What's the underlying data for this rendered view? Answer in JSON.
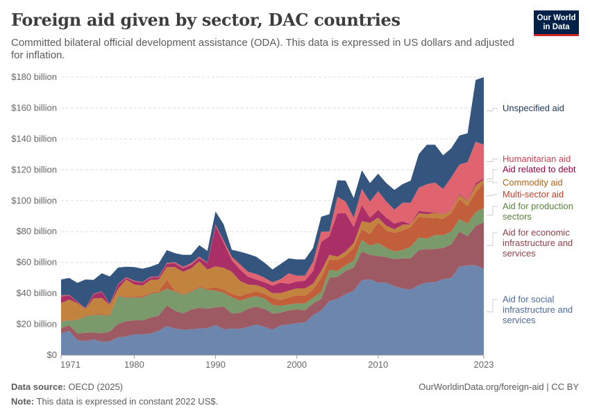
{
  "header": {
    "title": "Foreign aid given by sector, DAC countries",
    "subtitle": "Committed bilateral official development assistance (ODA). This data is expressed in US dollars and adjusted for inflation.",
    "logo": {
      "line1": "Our World",
      "line2": "in Data",
      "bg": "#002147",
      "accent": "#ce261e"
    }
  },
  "footer": {
    "source_label": "Data source:",
    "source": "OECD (2025)",
    "note_label": "Note:",
    "note": "This data is expressed in constant 2022 US$.",
    "url": "OurWorldinData.org/foreign-aid | CC BY"
  },
  "chart_data": {
    "type": "area",
    "stacked": true,
    "title": "Foreign aid given by sector, DAC countries",
    "ylim": [
      0,
      180
    ],
    "yticks": [
      {
        "v": 0,
        "label": "$0"
      },
      {
        "v": 20,
        "label": "$20 billion"
      },
      {
        "v": 40,
        "label": "$40 billion"
      },
      {
        "v": 60,
        "label": "$60 billion"
      },
      {
        "v": 80,
        "label": "$80 billion"
      },
      {
        "v": 100,
        "label": "$100 billion"
      },
      {
        "v": 120,
        "label": "$120 billion"
      },
      {
        "v": 140,
        "label": "$140 billion"
      },
      {
        "v": 160,
        "label": "$160 billion"
      },
      {
        "v": 180,
        "label": "$180 billion"
      }
    ],
    "xticks": [
      "1971",
      "1980",
      "1990",
      "2000",
      "2010",
      "2023"
    ],
    "xlim": [
      1971,
      2023
    ],
    "grid": "horizontal dashed",
    "legend": "right, inline labels",
    "units": "billion US$ (constant 2022)",
    "series": [
      {
        "name": "Aid for social infrastructure and services",
        "label_lines": [
          "Aid for social",
          "infrastructure and",
          "services"
        ],
        "color": "#6d86ae",
        "label_color": "#4c6a9c",
        "values": [
          14,
          15.7,
          9.7,
          9,
          10.2,
          8.7,
          9,
          11.5,
          12,
          13.5,
          13.5,
          14,
          15.7,
          18.7,
          17.2,
          16.5,
          16.8,
          17.2,
          17.5,
          19.5,
          16.8,
          17.2,
          17,
          18.3,
          19.8,
          18.3,
          16.5,
          19.2,
          20,
          20.7,
          21.2,
          26,
          29,
          35,
          36.5,
          39.5,
          41.7,
          48.5,
          49.2,
          47,
          47,
          44.7,
          43.2,
          42.4,
          45.4,
          47,
          47.2,
          49.2,
          50,
          57.4,
          58.2,
          58.2,
          56
        ]
      },
      {
        "name": "Aid for economic infrastructure and services",
        "label_lines": [
          "Aid for economic",
          "infrastructure and",
          "services"
        ],
        "color": "#9e5a62",
        "label_color": "#8f3e48",
        "values": [
          3.5,
          3.8,
          4.3,
          5.5,
          4.5,
          5.5,
          6.3,
          8.7,
          10,
          9,
          9,
          10.3,
          9.8,
          13.5,
          11.6,
          10.5,
          12.7,
          13.5,
          12.5,
          11.5,
          14.7,
          9.8,
          10.4,
          11.7,
          11.7,
          11.7,
          10.5,
          8.3,
          9,
          9,
          7.8,
          7.5,
          7.5,
          15,
          14.2,
          15,
          15,
          18.7,
          15.8,
          17.2,
          16.5,
          17.5,
          19.5,
          20.3,
          22.6,
          21.7,
          21.5,
          20.3,
          21.7,
          22.6,
          18.8,
          25.5,
          30
        ]
      },
      {
        "name": "Aid for production sectors",
        "label_lines": [
          "Aid for production",
          "sectors"
        ],
        "color": "#7a9a6b",
        "label_color": "#58843c",
        "values": [
          4.2,
          3,
          8.8,
          10.5,
          11.3,
          11.8,
          10.2,
          18,
          15.2,
          15,
          14.7,
          15.4,
          15,
          10.8,
          12.4,
          12,
          11.5,
          13.1,
          12.3,
          10.7,
          9,
          10.5,
          7.8,
          7,
          6.7,
          6.7,
          5.5,
          4.5,
          3.7,
          3.8,
          4.5,
          3.7,
          4.5,
          5.2,
          3.8,
          3.7,
          4.5,
          7.5,
          5.9,
          8.3,
          6,
          5,
          5.3,
          7.5,
          8.2,
          6.7,
          9,
          8.2,
          8.3,
          8.2,
          8.2,
          9,
          9.2
        ]
      },
      {
        "name": "Multi-sector aid",
        "label_lines": [
          "Multi-sector aid"
        ],
        "color": "#c35e3a",
        "label_color": "#c1402a",
        "values": [
          0.3,
          0.3,
          0.3,
          0.5,
          0.4,
          0.6,
          0.6,
          0.5,
          0.6,
          0.7,
          1,
          0.8,
          0.8,
          5.7,
          0.8,
          0.5,
          0.6,
          0.7,
          0.7,
          2.3,
          1.9,
          2.2,
          3,
          3,
          3,
          3,
          4.5,
          3.7,
          4.5,
          5.2,
          4.9,
          5.3,
          9,
          6.8,
          7,
          6,
          8.3,
          6.8,
          7.6,
          13.5,
          11.2,
          12,
          12.7,
          12.8,
          13.5,
          13.6,
          11.3,
          10.5,
          12,
          12.8,
          11.3,
          12.8,
          16.2
        ]
      },
      {
        "name": "Commodity aid",
        "label_lines": [
          "Commodity aid"
        ],
        "color": "#c2833f",
        "label_color": "#b16214",
        "values": [
          11.7,
          13.2,
          10.6,
          4.5,
          10.3,
          10.4,
          6.4,
          4,
          11.2,
          7.5,
          6.8,
          8.2,
          7.7,
          8.3,
          15,
          14.5,
          14.6,
          16.2,
          12.5,
          13.5,
          14.1,
          14.3,
          9.8,
          5.7,
          4.2,
          3.8,
          3.2,
          4.5,
          4.5,
          4.5,
          4.8,
          3.7,
          4.5,
          3,
          2.2,
          3,
          3,
          5.2,
          7.1,
          3,
          3,
          2.3,
          3.8,
          1.5,
          2.3,
          2.2,
          3.2,
          3,
          1.7,
          3,
          3,
          4.5,
          2.3
        ]
      },
      {
        "name": "Aid related to debt",
        "label_lines": [
          "Aid related to debt"
        ],
        "color": "#a92f66",
        "label_color": "#970046",
        "values": [
          4.3,
          2.7,
          0.8,
          0.3,
          2.6,
          4,
          0.5,
          3,
          1,
          2,
          2,
          1.5,
          1.5,
          2.2,
          2.5,
          2.2,
          2.3,
          2.3,
          4,
          26.2,
          16.2,
          7.5,
          7.5,
          5.1,
          3.6,
          3.7,
          4.8,
          6.8,
          4.5,
          4.5,
          5,
          8.3,
          18.7,
          12,
          28.2,
          24.8,
          10.5,
          10.5,
          3.4,
          5.2,
          5.3,
          3.7,
          2.2,
          0.2,
          1.5,
          1.5,
          0.3,
          0.2,
          0.3,
          0.7,
          0.3,
          1.4,
          0.7
        ]
      },
      {
        "name": "Humanitarian aid",
        "label_lines": [
          "Humanitarian aid"
        ],
        "color": "#e0646f",
        "label_color": "#d73c50",
        "values": [
          0.7,
          0.3,
          0.3,
          0.2,
          0.4,
          0.3,
          0.3,
          0.4,
          0.5,
          0.5,
          0.3,
          0.5,
          0.5,
          0.5,
          0.7,
          1,
          1,
          0.8,
          0.4,
          0.8,
          1.5,
          2.2,
          3.3,
          3.2,
          3.5,
          3,
          2.2,
          2.2,
          6.8,
          3.8,
          3.3,
          6,
          6.8,
          3,
          10.6,
          7.5,
          6,
          10.5,
          10.4,
          12,
          10.5,
          9,
          12,
          14,
          14.9,
          18,
          19.2,
          16.3,
          21.2,
          18.7,
          25.2,
          26.8,
          21.8
        ]
      },
      {
        "name": "Unspecified aid",
        "label_lines": [
          "Unspecified aid"
        ],
        "color": "#34557d",
        "label_color": "#1d3557",
        "values": [
          10.3,
          11,
          12,
          18.5,
          9,
          11.7,
          17.7,
          10.6,
          6.8,
          8.8,
          8.7,
          6.6,
          8.2,
          8.3,
          5.8,
          7.8,
          5.5,
          7.4,
          7.6,
          8.5,
          10.5,
          4.5,
          8.2,
          11.5,
          11.2,
          9.8,
          8.3,
          9.8,
          9.7,
          10.5,
          10.5,
          9,
          9.7,
          11.2,
          10.7,
          13.5,
          12.7,
          12,
          12,
          11.3,
          11.9,
          12.8,
          12,
          14.3,
          21.8,
          25.5,
          24.5,
          21.7,
          18.8,
          18.8,
          18.7,
          40,
          43.8
        ]
      }
    ]
  }
}
